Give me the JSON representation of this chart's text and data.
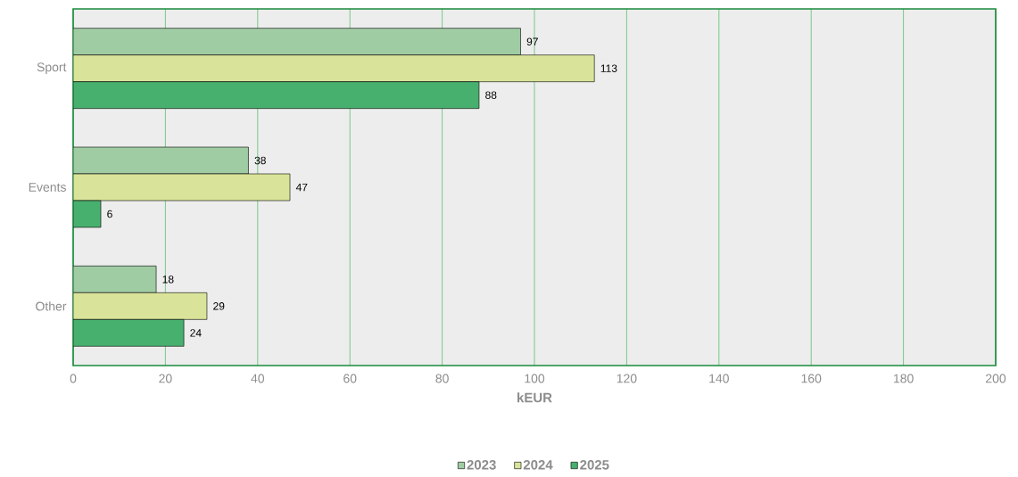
{
  "chart_data": {
    "type": "bar",
    "orientation": "horizontal",
    "xlabel": "kEUR",
    "categories": [
      "Sport",
      "Events",
      "Other"
    ],
    "series": [
      {
        "name": "2023",
        "color": "#a0cca4",
        "values": [
          97,
          38,
          18
        ]
      },
      {
        "name": "2024",
        "color": "#d9e49a",
        "values": [
          113,
          47,
          29
        ]
      },
      {
        "name": "2025",
        "color": "#48b06e",
        "values": [
          88,
          6,
          24
        ]
      }
    ],
    "xlim": [
      0,
      200
    ],
    "xticks": [
      0,
      20,
      40,
      60,
      80,
      100,
      120,
      140,
      160,
      180,
      200
    ],
    "grid": "x",
    "legend": "bottom",
    "data_labels": true
  }
}
